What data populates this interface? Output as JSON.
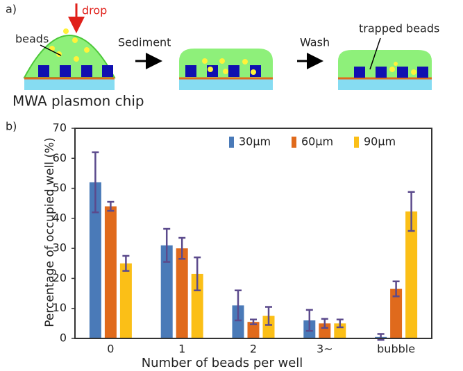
{
  "diagram": {
    "panel_label": "a)",
    "drop": "drop",
    "beads": "beads",
    "sediment": "Sediment",
    "wash": "Wash",
    "trapped_beads": "trapped beads",
    "chip": "MWA plasmon chip"
  },
  "chart_data": {
    "type": "bar",
    "panel_label": "b)",
    "x_label": "Number of beads per well",
    "y_label": "Percentage of occupied well (%)",
    "categories": [
      "0",
      "1",
      "2",
      "3~",
      "bubble"
    ],
    "series": [
      {
        "name": "30µm",
        "color": "#4a7ab8",
        "values": [
          52,
          31,
          11,
          6,
          0.5
        ],
        "errors": [
          10,
          5.5,
          5,
          3.5,
          1
        ]
      },
      {
        "name": "60µm",
        "color": "#e06a1c",
        "values": [
          44,
          30,
          5.5,
          5,
          16.5
        ],
        "errors": [
          1.5,
          3.5,
          0.8,
          1.5,
          2.5
        ]
      },
      {
        "name": "90µm",
        "color": "#fbbf17",
        "values": [
          25,
          21.5,
          7.5,
          5,
          42.3
        ],
        "errors": [
          2.5,
          5.5,
          3,
          1.3,
          6.5
        ]
      }
    ],
    "error_color": "#5b4a8c",
    "ylim": [
      0,
      70
    ],
    "yticks": [
      0,
      10,
      20,
      30,
      40,
      50,
      60,
      70
    ],
    "legend": "top-right"
  }
}
